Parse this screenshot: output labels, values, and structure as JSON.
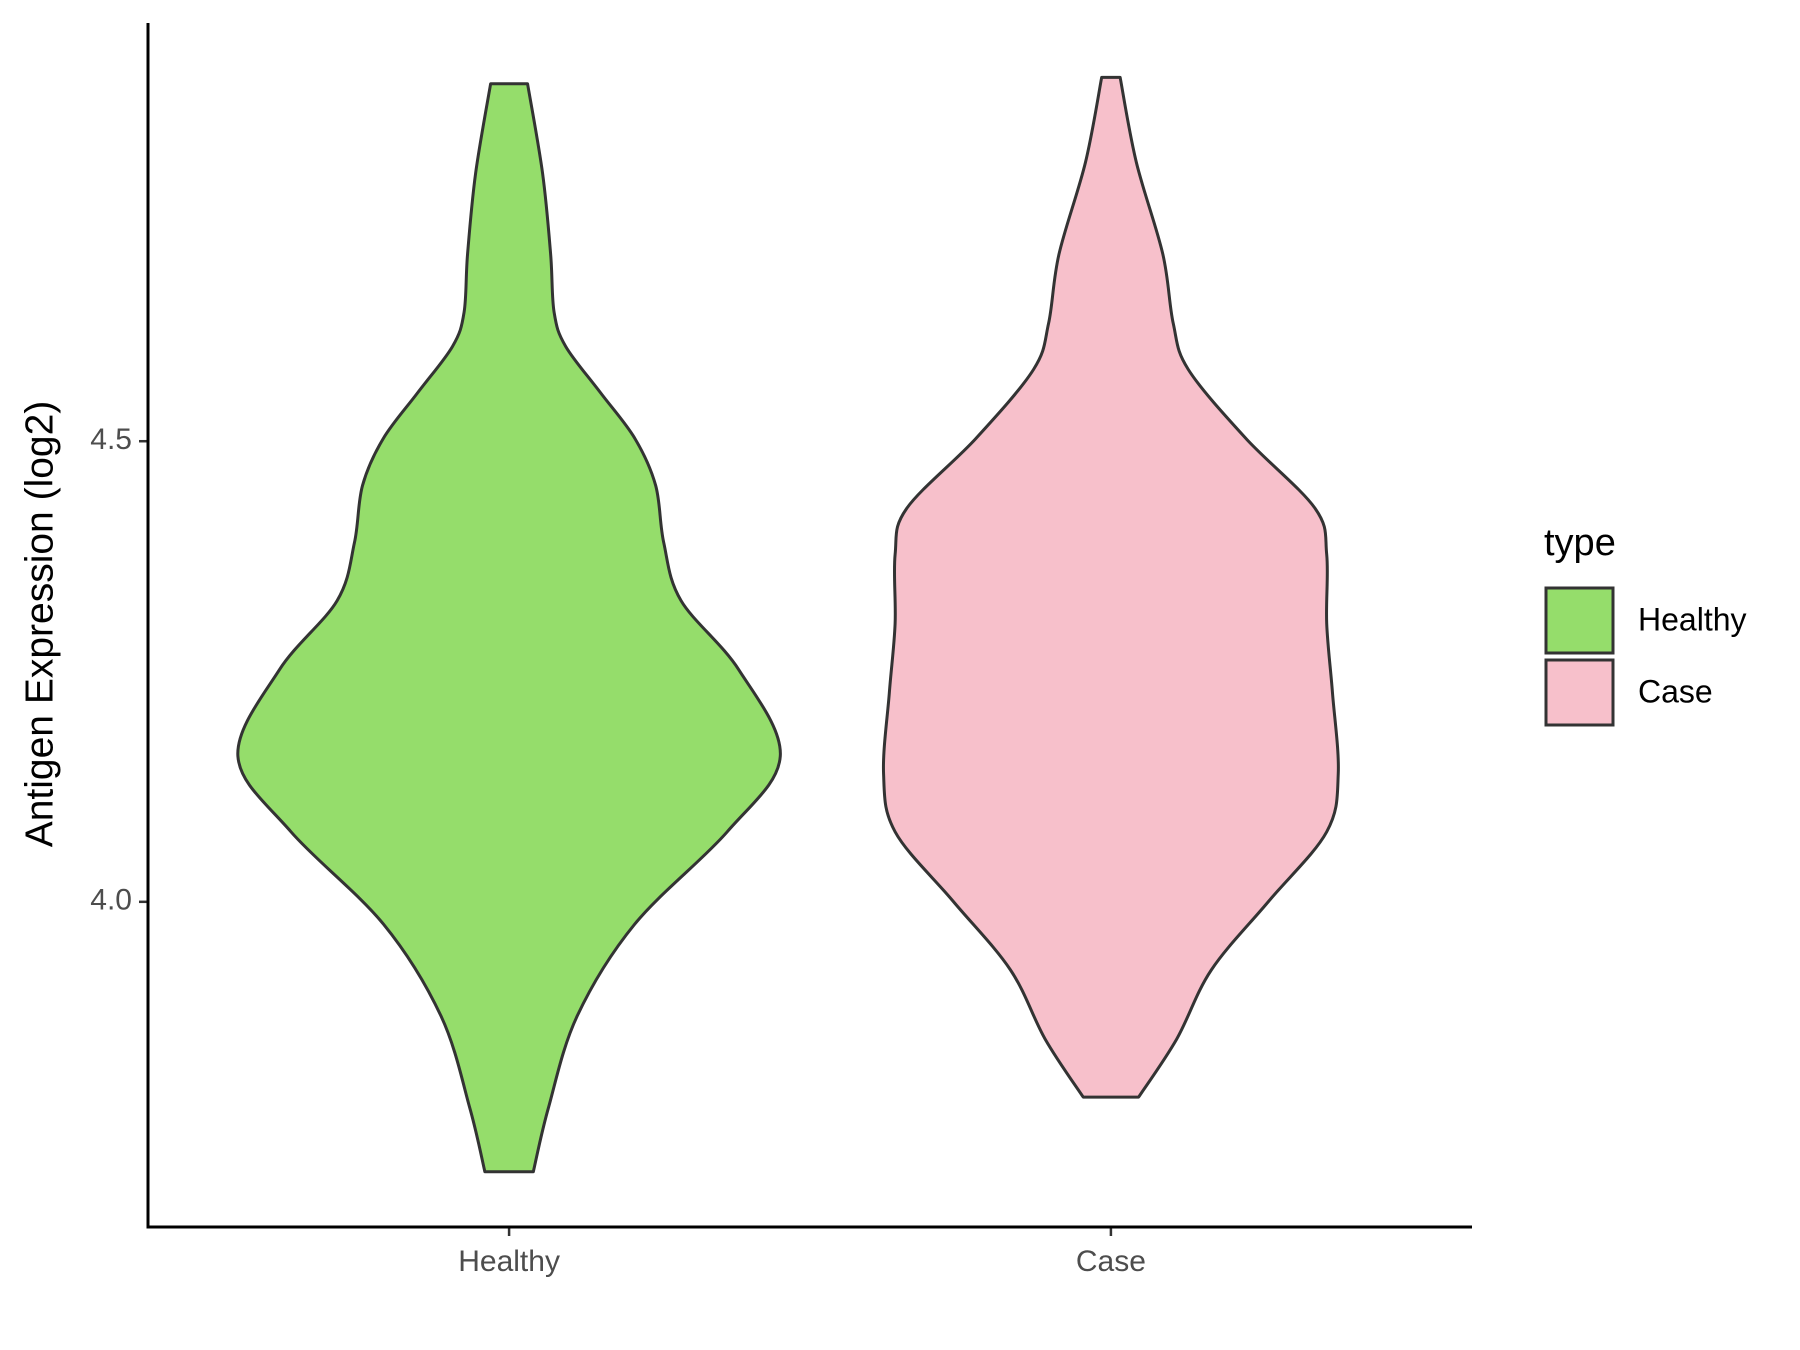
{
  "chart_data": {
    "type": "violin",
    "ylabel": "Antigen Expression (log2)",
    "categories": [
      "Healthy",
      "Case"
    ],
    "legend_title": "type",
    "legend": "right",
    "ylim": [
      3.647,
      4.954
    ],
    "yticks": [
      {
        "value": 4.0,
        "label": "4.0"
      },
      {
        "value": 4.5,
        "label": "4.5"
      }
    ],
    "series": [
      {
        "name": "Healthy",
        "color": "#95dd6b",
        "y": [
          4.888,
          4.791,
          4.703,
          4.64,
          4.603,
          4.553,
          4.503,
          4.452,
          4.39,
          4.327,
          4.252,
          4.158,
          4.076,
          3.976,
          3.876,
          3.776,
          3.707
        ],
        "density": [
          0.16,
          0.29,
          0.36,
          0.39,
          0.49,
          0.79,
          1.09,
          1.27,
          1.34,
          1.49,
          1.99,
          2.35,
          1.89,
          1.09,
          0.59,
          0.34,
          0.21
        ]
      },
      {
        "name": "Case",
        "color": "#f7c0cb",
        "y": [
          4.895,
          4.803,
          4.703,
          4.628,
          4.578,
          4.503,
          4.427,
          4.377,
          4.302,
          4.227,
          4.139,
          4.076,
          4.001,
          3.926,
          3.851,
          3.788
        ],
        "density": [
          0.08,
          0.22,
          0.45,
          0.54,
          0.67,
          1.17,
          1.77,
          1.87,
          1.87,
          1.92,
          1.97,
          1.87,
          1.37,
          0.87,
          0.57,
          0.24
        ]
      }
    ]
  }
}
